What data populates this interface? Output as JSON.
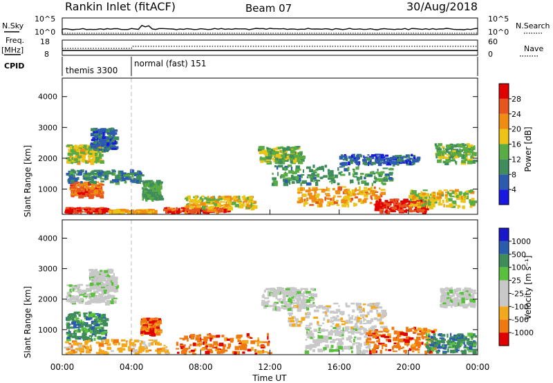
{
  "header": {
    "station": "Rankin Inlet (fitACF)",
    "beam": "Beam 07",
    "date": "30/Aug/2018"
  },
  "top_panels": {
    "nsky": {
      "label": "N.Sky",
      "tick_top": "10^5",
      "tick_bottom": "10^0"
    },
    "nsearch": {
      "label": "N.Search",
      "tick_top": "10^5",
      "tick_bottom": "10^0"
    },
    "freq": {
      "label_line1": "Freq.",
      "label_line2": "[MHz]",
      "tick_top": "18",
      "tick_bottom": "8"
    },
    "nave": {
      "label": "Nave",
      "tick_top": "60",
      "tick_bottom": "0"
    },
    "cpid": {
      "label": "CPID",
      "programs": [
        {
          "name": "themis 3300",
          "start_hour": 0,
          "end_hour": 4
        },
        {
          "name": "normal (fast) 151",
          "start_hour": 4,
          "end_hour": 24
        }
      ]
    }
  },
  "colors": {
    "power": [
      "#1818e0",
      "#2c5aae",
      "#3f8c5c",
      "#59ab44",
      "#ecc418",
      "#f08c12",
      "#e8541e",
      "#e00000"
    ],
    "velocity": [
      "#e00000",
      "#f07810",
      "#f4a81c",
      "#c8c8c8",
      "#c8c8c8",
      "#59c03c",
      "#3e8c5a",
      "#2a5cad",
      "#1818c8"
    ]
  },
  "chart_data": [
    {
      "type": "heatmap",
      "quantity": "Power",
      "ylabel": "Slant Range [km]",
      "colorbar_label": "Power [dB]",
      "colorbar_ticks": [
        "4",
        "8",
        "12",
        "16",
        "20",
        "24",
        "28"
      ],
      "colorbar_range": [
        0,
        32
      ],
      "xlim": [
        0,
        24
      ],
      "ylim": [
        180,
        4600
      ],
      "yticks": [
        "1000",
        "2000",
        "3000",
        "4000"
      ],
      "regions": [
        {
          "t0": 0.1,
          "t1": 2.6,
          "r0": 190,
          "r1": 420,
          "level": 28
        },
        {
          "t0": 2.6,
          "t1": 5.2,
          "r0": 190,
          "r1": 360,
          "level": 20
        },
        {
          "t0": 5.8,
          "t1": 9.5,
          "r0": 190,
          "r1": 420,
          "level": 27
        },
        {
          "t0": 7.0,
          "t1": 11.0,
          "r0": 420,
          "r1": 800,
          "level": 18
        },
        {
          "t0": 0.4,
          "t1": 2.2,
          "r0": 800,
          "r1": 1250,
          "level": 25
        },
        {
          "t0": 0.2,
          "t1": 4.5,
          "r0": 1250,
          "r1": 1650,
          "level": 9
        },
        {
          "t0": 0.2,
          "t1": 2.2,
          "r0": 1900,
          "r1": 2450,
          "level": 17
        },
        {
          "t0": 1.6,
          "t1": 3.0,
          "r0": 2300,
          "r1": 3000,
          "level": 7
        },
        {
          "t0": 4.6,
          "t1": 5.6,
          "r0": 700,
          "r1": 1300,
          "level": 12
        },
        {
          "t0": 11.3,
          "t1": 13.8,
          "r0": 1900,
          "r1": 2400,
          "level": 14
        },
        {
          "t0": 12.0,
          "t1": 19.0,
          "r0": 1200,
          "r1": 1800,
          "level": 11
        },
        {
          "t0": 13.5,
          "t1": 18.5,
          "r0": 500,
          "r1": 1100,
          "level": 21
        },
        {
          "t0": 16.0,
          "t1": 20.5,
          "r0": 1850,
          "r1": 2150,
          "level": 6
        },
        {
          "t0": 18.0,
          "t1": 21.0,
          "r0": 300,
          "r1": 700,
          "level": 29
        },
        {
          "t0": 20.0,
          "t1": 23.7,
          "r0": 450,
          "r1": 1000,
          "level": 18
        },
        {
          "t0": 21.5,
          "t1": 23.9,
          "r0": 1900,
          "r1": 2500,
          "level": 13
        }
      ]
    },
    {
      "type": "heatmap",
      "quantity": "Velocity",
      "ylabel": "Slant Range [km]",
      "colorbar_label": "Velocity [m s⁻¹]",
      "colorbar_ticks": [
        "1000",
        "500",
        "100",
        "25",
        "-25",
        "-100",
        "-500",
        "-1000"
      ],
      "xlim": [
        0,
        24
      ],
      "ylim": [
        180,
        4600
      ],
      "yticks": [
        "1000",
        "2000",
        "3000",
        "4000"
      ],
      "xticks": [
        "00:00",
        "04:00",
        "08:00",
        "12:00",
        "16:00",
        "20:00",
        "00:00"
      ],
      "xlabel": "Time UT",
      "regions": [
        {
          "t0": 0.2,
          "t1": 2.5,
          "r0": 700,
          "r1": 1600,
          "level": 6
        },
        {
          "t0": 0.2,
          "t1": 3.0,
          "r0": 1900,
          "r1": 2500,
          "level": 4
        },
        {
          "t0": 1.5,
          "t1": 3.0,
          "r0": 2400,
          "r1": 3000,
          "level": 4
        },
        {
          "t0": 0.1,
          "t1": 6.0,
          "r0": 190,
          "r1": 700,
          "level": 2
        },
        {
          "t0": 4.5,
          "t1": 5.5,
          "r0": 900,
          "r1": 1400,
          "level": 1
        },
        {
          "t0": 6.5,
          "t1": 12.0,
          "r0": 200,
          "r1": 900,
          "level": 1
        },
        {
          "t0": 11.5,
          "t1": 14.5,
          "r0": 1700,
          "r1": 2400,
          "level": 4
        },
        {
          "t0": 13.0,
          "t1": 18.5,
          "r0": 1100,
          "r1": 1900,
          "level": 3
        },
        {
          "t0": 14.0,
          "t1": 18.0,
          "r0": 300,
          "r1": 1100,
          "level": 4
        },
        {
          "t0": 17.5,
          "t1": 21.5,
          "r0": 300,
          "r1": 1100,
          "level": 1
        },
        {
          "t0": 21.0,
          "t1": 23.9,
          "r0": 300,
          "r1": 900,
          "level": 6
        },
        {
          "t0": 21.8,
          "t1": 23.9,
          "r0": 1800,
          "r1": 2400,
          "level": 4
        }
      ]
    }
  ]
}
